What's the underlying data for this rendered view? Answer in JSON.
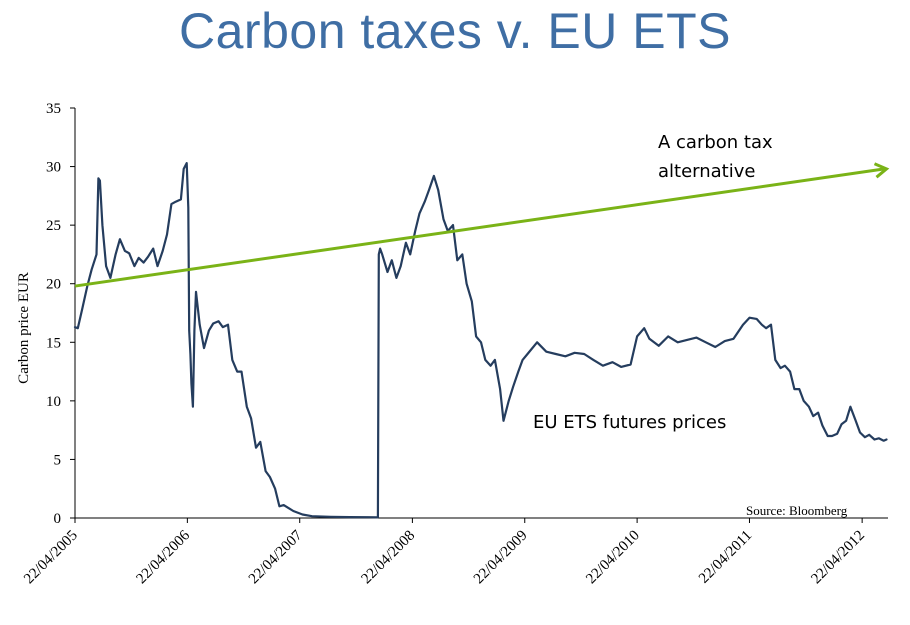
{
  "title": "Carbon taxes v. EU ETS",
  "chart_data": {
    "type": "line",
    "ylabel": "Carbon price EUR",
    "ylim": [
      0,
      35
    ],
    "yticks": [
      "0",
      "5",
      "10",
      "15",
      "20",
      "25",
      "30",
      "35"
    ],
    "xticks": [
      "22/04/2005",
      "22/04/2006",
      "22/04/2007",
      "22/04/2008",
      "22/04/2009",
      "22/04/2010",
      "22/04/2011",
      "22/04/2012"
    ],
    "xlim": [
      "2005-04-22",
      "2012-07-15"
    ],
    "annotations": {
      "tax_label_line1": "A carbon tax",
      "tax_label_line2": "alternative",
      "ets_label": "EU ETS futures prices",
      "source": "Source: Bloomberg"
    },
    "colors": {
      "ets": "#253d5e",
      "tax": "#7ab317",
      "title": "#3f6ea4"
    },
    "series": [
      {
        "name": "EU ETS futures prices",
        "x": [
          "2005-04-22",
          "2005-05-01",
          "2005-05-15",
          "2005-06-01",
          "2005-06-15",
          "2005-07-01",
          "2005-07-07",
          "2005-07-12",
          "2005-07-20",
          "2005-08-01",
          "2005-08-15",
          "2005-09-01",
          "2005-09-15",
          "2005-10-01",
          "2005-10-15",
          "2005-11-01",
          "2005-11-15",
          "2005-12-01",
          "2005-12-15",
          "2006-01-01",
          "2006-01-15",
          "2006-02-01",
          "2006-02-15",
          "2006-03-01",
          "2006-03-15",
          "2006-04-01",
          "2006-04-10",
          "2006-04-20",
          "2006-04-25",
          "2006-04-28",
          "2006-05-02",
          "2006-05-05",
          "2006-05-10",
          "2006-05-15",
          "2006-05-20",
          "2006-06-01",
          "2006-06-15",
          "2006-07-01",
          "2006-07-15",
          "2006-08-01",
          "2006-08-15",
          "2006-09-01",
          "2006-09-15",
          "2006-10-01",
          "2006-10-15",
          "2006-11-01",
          "2006-11-15",
          "2006-12-01",
          "2006-12-15",
          "2007-01-01",
          "2007-01-15",
          "2007-02-01",
          "2007-02-15",
          "2007-03-01",
          "2007-04-01",
          "2007-05-01",
          "2007-06-01",
          "2007-08-01",
          "2007-10-01",
          "2007-12-01",
          "2008-01-01",
          "2008-01-04",
          "2008-01-08",
          "2008-01-15",
          "2008-02-01",
          "2008-02-15",
          "2008-03-01",
          "2008-03-15",
          "2008-04-01",
          "2008-04-15",
          "2008-05-01",
          "2008-05-15",
          "2008-06-01",
          "2008-06-15",
          "2008-07-01",
          "2008-07-15",
          "2008-08-01",
          "2008-08-15",
          "2008-09-01",
          "2008-09-15",
          "2008-10-01",
          "2008-10-15",
          "2008-11-01",
          "2008-11-15",
          "2008-12-01",
          "2008-12-15",
          "2009-01-01",
          "2009-01-15",
          "2009-02-01",
          "2009-02-12",
          "2009-03-01",
          "2009-03-15",
          "2009-04-01",
          "2009-04-15",
          "2009-05-01",
          "2009-06-01",
          "2009-07-01",
          "2009-08-01",
          "2009-09-01",
          "2009-10-01",
          "2009-11-01",
          "2009-12-01",
          "2010-01-01",
          "2010-02-01",
          "2010-03-01",
          "2010-04-01",
          "2010-04-22",
          "2010-05-15",
          "2010-06-01",
          "2010-07-01",
          "2010-08-01",
          "2010-09-01",
          "2010-10-01",
          "2010-11-01",
          "2010-12-01",
          "2011-01-01",
          "2011-02-01",
          "2011-03-01",
          "2011-04-01",
          "2011-04-22",
          "2011-05-15",
          "2011-06-01",
          "2011-06-15",
          "2011-07-01",
          "2011-07-15",
          "2011-08-01",
          "2011-08-15",
          "2011-09-01",
          "2011-09-15",
          "2011-10-01",
          "2011-10-15",
          "2011-11-01",
          "2011-11-15",
          "2011-12-01",
          "2011-12-15",
          "2012-01-01",
          "2012-01-15",
          "2012-02-01",
          "2012-02-15",
          "2012-03-01",
          "2012-03-15",
          "2012-04-01",
          "2012-04-15",
          "2012-05-01",
          "2012-05-15",
          "2012-06-01",
          "2012-06-15",
          "2012-07-01",
          "2012-07-10"
        ],
        "values": [
          16.3,
          16.2,
          17.8,
          19.8,
          21.2,
          22.5,
          29.0,
          28.8,
          25.0,
          21.5,
          20.5,
          22.5,
          23.8,
          22.8,
          22.6,
          21.5,
          22.2,
          21.8,
          22.3,
          23.0,
          21.5,
          22.8,
          24.2,
          26.8,
          27.0,
          27.2,
          29.8,
          30.3,
          26.5,
          16.0,
          14.0,
          11.5,
          9.5,
          16.0,
          19.3,
          16.5,
          14.5,
          16.0,
          16.6,
          16.8,
          16.3,
          16.5,
          13.5,
          12.5,
          12.5,
          9.5,
          8.5,
          6.0,
          6.5,
          4.0,
          3.5,
          2.5,
          1.0,
          1.1,
          0.6,
          0.3,
          0.15,
          0.1,
          0.08,
          0.07,
          0.05,
          22.5,
          23.0,
          22.5,
          21.0,
          22.0,
          20.5,
          21.5,
          23.5,
          22.5,
          24.5,
          26.0,
          27.0,
          28.0,
          29.2,
          28.0,
          25.5,
          24.5,
          25.0,
          22.0,
          22.5,
          20.0,
          18.5,
          15.5,
          15.0,
          13.5,
          13.0,
          13.5,
          11.0,
          8.3,
          10.0,
          11.2,
          12.5,
          13.5,
          14.0,
          15.0,
          14.2,
          14.0,
          13.8,
          14.1,
          14.0,
          13.5,
          13.0,
          13.3,
          12.9,
          13.1,
          15.5,
          16.2,
          15.3,
          14.7,
          15.5,
          15.0,
          15.2,
          15.4,
          15.0,
          14.6,
          15.1,
          15.3,
          16.5,
          17.1,
          17.0,
          16.5,
          16.2,
          16.5,
          13.5,
          12.8,
          13.0,
          12.5,
          11.0,
          11.0,
          10.0,
          9.5,
          8.7,
          9.0,
          7.9,
          7.0,
          7.0,
          7.2,
          8.0,
          8.3,
          9.5,
          8.3,
          7.3,
          6.9,
          7.1,
          6.7,
          6.8,
          6.6,
          6.7
        ]
      },
      {
        "name": "A carbon tax alternative",
        "x": [
          "2005-04-22",
          "2012-07-10"
        ],
        "values": [
          19.8,
          29.8
        ]
      }
    ]
  }
}
